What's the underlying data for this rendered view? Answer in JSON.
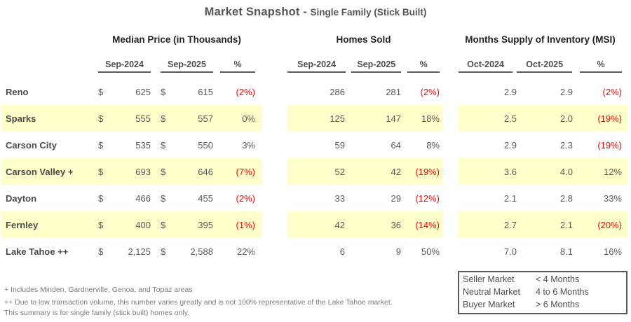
{
  "title": {
    "main": "Market Snapshot -",
    "subtitle": "Single Family (Stick Built)"
  },
  "sections": [
    {
      "title": "Median Price (in Thousands)",
      "columns": [
        "Sep-2024",
        "Sep-2025",
        "%"
      ]
    },
    {
      "title": "Homes Sold",
      "columns": [
        "Sep-2024",
        "Sep-2025",
        "%"
      ]
    },
    {
      "title": "Months Supply of Inventory (MSI)",
      "columns": [
        "Oct-2024",
        "Oct-2025",
        "%"
      ]
    }
  ],
  "rows": [
    {
      "label": "Reno",
      "highlight": false,
      "median": {
        "currency1": "$",
        "price1": "625",
        "currency2": "$",
        "price2": "615",
        "pct": "(2%)",
        "negative": true
      },
      "homes": {
        "v1": "286",
        "v2": "281",
        "pct": "(2%)",
        "negative": true
      },
      "msi": {
        "v1": "2.9",
        "v2": "2.9",
        "pct": "(2%)",
        "negative": true
      }
    },
    {
      "label": "Sparks",
      "highlight": true,
      "median": {
        "currency1": "$",
        "price1": "555",
        "currency2": "$",
        "price2": "557",
        "pct": "0%",
        "negative": false
      },
      "homes": {
        "v1": "125",
        "v2": "147",
        "pct": "18%",
        "negative": false
      },
      "msi": {
        "v1": "2.5",
        "v2": "2.0",
        "pct": "(19%)",
        "negative": true
      }
    },
    {
      "label": "Carson City",
      "highlight": false,
      "median": {
        "currency1": "$",
        "price1": "535",
        "currency2": "$",
        "price2": "550",
        "pct": "3%",
        "negative": false
      },
      "homes": {
        "v1": "59",
        "v2": "64",
        "pct": "8%",
        "negative": false
      },
      "msi": {
        "v1": "2.9",
        "v2": "2.3",
        "pct": "(19%)",
        "negative": true
      }
    },
    {
      "label": "Carson Valley +",
      "highlight": true,
      "median": {
        "currency1": "$",
        "price1": "693",
        "currency2": "$",
        "price2": "646",
        "pct": "(7%)",
        "negative": true
      },
      "homes": {
        "v1": "52",
        "v2": "42",
        "pct": "(19%)",
        "negative": true
      },
      "msi": {
        "v1": "3.6",
        "v2": "4.0",
        "pct": "12%",
        "negative": false
      }
    },
    {
      "label": "Dayton",
      "highlight": false,
      "median": {
        "currency1": "$",
        "price1": "466",
        "currency2": "$",
        "price2": "455",
        "pct": "(2%)",
        "negative": true
      },
      "homes": {
        "v1": "33",
        "v2": "29",
        "pct": "(12%)",
        "negative": true
      },
      "msi": {
        "v1": "2.1",
        "v2": "2.8",
        "pct": "33%",
        "negative": false
      }
    },
    {
      "label": "Fernley",
      "highlight": true,
      "median": {
        "currency1": "$",
        "price1": "400",
        "currency2": "$",
        "price2": "395",
        "pct": "(1%)",
        "negative": true
      },
      "homes": {
        "v1": "42",
        "v2": "36",
        "pct": "(14%)",
        "negative": true
      },
      "msi": {
        "v1": "2.7",
        "v2": "2.1",
        "pct": "(20%)",
        "negative": true
      }
    },
    {
      "label": "Lake Tahoe ++",
      "highlight": false,
      "median": {
        "currency1": "$",
        "price1": "2,125",
        "currency2": "$",
        "price2": "2,588",
        "pct": "22%",
        "negative": false
      },
      "homes": {
        "v1": "6",
        "v2": "9",
        "pct": "50%",
        "negative": false
      },
      "msi": {
        "v1": "7.0",
        "v2": "8.1",
        "pct": "16%",
        "negative": false
      }
    }
  ],
  "legend": {
    "rows": [
      {
        "label": "Seller Market",
        "range": "< 4 Months"
      },
      {
        "label": "Neutral Market",
        "range": "4 to 6 Months"
      },
      {
        "label": "Buyer Market",
        "range": "> 6  Months"
      }
    ]
  },
  "footnotes": [
    "+ Includes Minden, Gardnerville, Genoa, and Topaz areas",
    "++ Due to low transaction volume, this number varies greatly and is not 100% representative of the Lake Tahoe market.",
    "This summary is for single family (stick built) homes only."
  ],
  "colors": {
    "highlight": "#FFFFCC",
    "negative": "#FF0000",
    "text": "#595959"
  }
}
